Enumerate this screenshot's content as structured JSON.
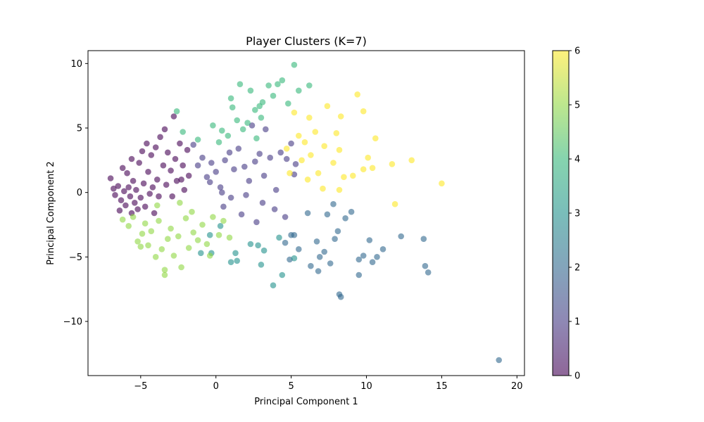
{
  "chart_data": {
    "type": "scatter",
    "title": "Player Clusters (K=7)",
    "xlabel": "Principal Component 1",
    "ylabel": "Principal Component 2",
    "xlim": [
      -8.5,
      20.5
    ],
    "ylim": [
      -14.2,
      11.0
    ],
    "xticks": [
      -5,
      0,
      5,
      10,
      15,
      20
    ],
    "yticks": [
      -10,
      -5,
      0,
      5,
      10
    ],
    "grid": false,
    "marker_alpha": 0.6,
    "colormap": "viridis",
    "colorbar": {
      "ticks": [
        0,
        1,
        2,
        3,
        4,
        5,
        6
      ],
      "range": [
        0,
        6
      ],
      "stops": [
        "#440154",
        "#443983",
        "#31688e",
        "#21918c",
        "#35b779",
        "#90d743",
        "#fde725"
      ]
    },
    "cluster_colors": [
      "#440154",
      "#443983",
      "#31688e",
      "#21918c",
      "#35b779",
      "#90d743",
      "#fde725"
    ],
    "points": [
      {
        "x": -7.0,
        "y": 1.1,
        "c": 0
      },
      {
        "x": -6.8,
        "y": 0.3,
        "c": 0
      },
      {
        "x": -6.7,
        "y": -0.2,
        "c": 0
      },
      {
        "x": -6.5,
        "y": 0.5,
        "c": 0
      },
      {
        "x": -6.3,
        "y": -0.6,
        "c": 0
      },
      {
        "x": -6.1,
        "y": 0.1,
        "c": 0
      },
      {
        "x": -6.0,
        "y": -1.0,
        "c": 0
      },
      {
        "x": -5.9,
        "y": 1.5,
        "c": 0
      },
      {
        "x": -5.8,
        "y": 0.4,
        "c": 0
      },
      {
        "x": -5.7,
        "y": -0.3,
        "c": 0
      },
      {
        "x": -5.6,
        "y": -1.6,
        "c": 0
      },
      {
        "x": -5.5,
        "y": 0.9,
        "c": 0
      },
      {
        "x": -5.4,
        "y": -0.8,
        "c": 0
      },
      {
        "x": -5.3,
        "y": 0.2,
        "c": 0
      },
      {
        "x": -5.2,
        "y": -1.3,
        "c": 0
      },
      {
        "x": -5.1,
        "y": 2.3,
        "c": 0
      },
      {
        "x": -5.0,
        "y": -0.4,
        "c": 0
      },
      {
        "x": -4.9,
        "y": 3.2,
        "c": 0
      },
      {
        "x": -4.8,
        "y": 0.7,
        "c": 0
      },
      {
        "x": -4.7,
        "y": -1.1,
        "c": 0
      },
      {
        "x": -4.6,
        "y": 3.8,
        "c": 0
      },
      {
        "x": -4.5,
        "y": 1.6,
        "c": 0
      },
      {
        "x": -4.4,
        "y": -0.1,
        "c": 0
      },
      {
        "x": -4.3,
        "y": 2.9,
        "c": 0
      },
      {
        "x": -4.2,
        "y": 0.4,
        "c": 0
      },
      {
        "x": -4.0,
        "y": 3.5,
        "c": 0
      },
      {
        "x": -3.9,
        "y": 1.0,
        "c": 0
      },
      {
        "x": -3.8,
        "y": -0.3,
        "c": 0
      },
      {
        "x": -3.7,
        "y": 4.3,
        "c": 0
      },
      {
        "x": -3.5,
        "y": 2.1,
        "c": 0
      },
      {
        "x": -3.4,
        "y": 4.9,
        "c": 0
      },
      {
        "x": -3.3,
        "y": 0.6,
        "c": 0
      },
      {
        "x": -3.2,
        "y": 3.1,
        "c": 0
      },
      {
        "x": -3.0,
        "y": 1.7,
        "c": 0
      },
      {
        "x": -2.8,
        "y": 5.9,
        "c": 0
      },
      {
        "x": -2.7,
        "y": 2.6,
        "c": 0
      },
      {
        "x": -2.6,
        "y": 0.9,
        "c": 0
      },
      {
        "x": -2.4,
        "y": 3.8,
        "c": 0
      },
      {
        "x": -2.2,
        "y": 2.1,
        "c": 0
      },
      {
        "x": -2.1,
        "y": 0.2,
        "c": 0
      },
      {
        "x": -1.9,
        "y": 3.3,
        "c": 0
      },
      {
        "x": -1.8,
        "y": 1.3,
        "c": 0
      },
      {
        "x": -6.4,
        "y": -1.4,
        "c": 0
      },
      {
        "x": -6.2,
        "y": 1.9,
        "c": 0
      },
      {
        "x": -5.6,
        "y": 2.6,
        "c": 0
      },
      {
        "x": -4.1,
        "y": -1.6,
        "c": 0
      },
      {
        "x": -2.9,
        "y": -0.3,
        "c": 0
      },
      {
        "x": -2.3,
        "y": 1.0,
        "c": 0
      },
      {
        "x": -1.5,
        "y": 3.7,
        "c": 1
      },
      {
        "x": -1.2,
        "y": 2.1,
        "c": 1
      },
      {
        "x": -0.9,
        "y": 2.7,
        "c": 1
      },
      {
        "x": -0.6,
        "y": 1.2,
        "c": 1
      },
      {
        "x": -0.3,
        "y": 2.3,
        "c": 1
      },
      {
        "x": 0.0,
        "y": 1.6,
        "c": 1
      },
      {
        "x": 0.3,
        "y": 0.4,
        "c": 1
      },
      {
        "x": 0.6,
        "y": 2.5,
        "c": 1
      },
      {
        "x": 0.9,
        "y": 3.1,
        "c": 1
      },
      {
        "x": 1.2,
        "y": 1.8,
        "c": 1
      },
      {
        "x": 1.5,
        "y": 3.4,
        "c": 1
      },
      {
        "x": 1.9,
        "y": 2.0,
        "c": 1
      },
      {
        "x": 2.2,
        "y": 0.9,
        "c": 1
      },
      {
        "x": 2.6,
        "y": 2.4,
        "c": 1
      },
      {
        "x": 2.9,
        "y": 3.0,
        "c": 1
      },
      {
        "x": 3.2,
        "y": 1.3,
        "c": 1
      },
      {
        "x": 3.6,
        "y": 2.7,
        "c": 1
      },
      {
        "x": 4.0,
        "y": 0.2,
        "c": 1
      },
      {
        "x": 4.3,
        "y": 3.1,
        "c": 1
      },
      {
        "x": 4.7,
        "y": 2.6,
        "c": 1
      },
      {
        "x": 5.0,
        "y": 3.8,
        "c": 1
      },
      {
        "x": 5.3,
        "y": 2.2,
        "c": 1
      },
      {
        "x": 0.4,
        "y": 0.0,
        "c": 1
      },
      {
        "x": 1.0,
        "y": -0.4,
        "c": 1
      },
      {
        "x": 2.0,
        "y": -0.2,
        "c": 1
      },
      {
        "x": 3.1,
        "y": -0.8,
        "c": 1
      },
      {
        "x": 3.9,
        "y": -1.3,
        "c": 1
      },
      {
        "x": 4.6,
        "y": -1.9,
        "c": 1
      },
      {
        "x": 2.7,
        "y": -2.3,
        "c": 1
      },
      {
        "x": 1.7,
        "y": -1.7,
        "c": 1
      },
      {
        "x": 0.5,
        "y": -1.1,
        "c": 1
      },
      {
        "x": -0.4,
        "y": 0.8,
        "c": 1
      },
      {
        "x": 5.2,
        "y": 1.4,
        "c": 1
      },
      {
        "x": 3.3,
        "y": 4.9,
        "c": 1
      },
      {
        "x": 2.4,
        "y": 5.2,
        "c": 1
      },
      {
        "x": 4.6,
        "y": -3.9,
        "c": 2
      },
      {
        "x": 5.2,
        "y": -3.3,
        "c": 2
      },
      {
        "x": 5.5,
        "y": -4.4,
        "c": 2
      },
      {
        "x": 6.1,
        "y": -1.6,
        "c": 2
      },
      {
        "x": 6.3,
        "y": -5.7,
        "c": 2
      },
      {
        "x": 6.7,
        "y": -3.8,
        "c": 2
      },
      {
        "x": 6.9,
        "y": -5.0,
        "c": 2
      },
      {
        "x": 7.2,
        "y": -4.6,
        "c": 2
      },
      {
        "x": 7.4,
        "y": -1.7,
        "c": 2
      },
      {
        "x": 7.6,
        "y": -5.5,
        "c": 2
      },
      {
        "x": 7.8,
        "y": -0.9,
        "c": 2
      },
      {
        "x": 7.9,
        "y": -3.6,
        "c": 2
      },
      {
        "x": 8.1,
        "y": -3.0,
        "c": 2
      },
      {
        "x": 8.2,
        "y": -7.9,
        "c": 2
      },
      {
        "x": 8.3,
        "y": -8.1,
        "c": 2
      },
      {
        "x": 8.6,
        "y": -2.0,
        "c": 2
      },
      {
        "x": 9.0,
        "y": -1.5,
        "c": 2
      },
      {
        "x": 9.5,
        "y": -5.2,
        "c": 2
      },
      {
        "x": 9.5,
        "y": -6.4,
        "c": 2
      },
      {
        "x": 9.8,
        "y": -4.9,
        "c": 2
      },
      {
        "x": 10.2,
        "y": -3.7,
        "c": 2
      },
      {
        "x": 10.4,
        "y": -5.4,
        "c": 2
      },
      {
        "x": 10.7,
        "y": -5.0,
        "c": 2
      },
      {
        "x": 11.1,
        "y": -4.4,
        "c": 2
      },
      {
        "x": 12.3,
        "y": -3.4,
        "c": 2
      },
      {
        "x": 13.8,
        "y": -3.6,
        "c": 2
      },
      {
        "x": 13.9,
        "y": -5.7,
        "c": 2
      },
      {
        "x": 14.1,
        "y": -6.2,
        "c": 2
      },
      {
        "x": 18.8,
        "y": -13.0,
        "c": 2
      },
      {
        "x": 6.8,
        "y": -6.1,
        "c": 2
      },
      {
        "x": 4.9,
        "y": -5.2,
        "c": 2
      },
      {
        "x": 5.0,
        "y": -3.3,
        "c": 2
      },
      {
        "x": 1.3,
        "y": -4.7,
        "c": 3
      },
      {
        "x": 1.4,
        "y": -5.3,
        "c": 3
      },
      {
        "x": 2.3,
        "y": -4.0,
        "c": 3
      },
      {
        "x": 3.0,
        "y": -5.6,
        "c": 3
      },
      {
        "x": 3.2,
        "y": -4.5,
        "c": 3
      },
      {
        "x": 3.8,
        "y": -7.2,
        "c": 3
      },
      {
        "x": 4.2,
        "y": -3.5,
        "c": 3
      },
      {
        "x": 4.4,
        "y": -6.4,
        "c": 3
      },
      {
        "x": 5.2,
        "y": -5.1,
        "c": 3
      },
      {
        "x": -1.0,
        "y": -4.7,
        "c": 3
      },
      {
        "x": -0.3,
        "y": -4.7,
        "c": 3
      },
      {
        "x": 0.3,
        "y": -2.6,
        "c": 3
      },
      {
        "x": 1.0,
        "y": -5.4,
        "c": 3
      },
      {
        "x": 2.8,
        "y": -4.1,
        "c": 3
      },
      {
        "x": -0.4,
        "y": -3.3,
        "c": 3
      },
      {
        "x": -2.6,
        "y": 6.3,
        "c": 4
      },
      {
        "x": -2.2,
        "y": 4.7,
        "c": 4
      },
      {
        "x": -1.2,
        "y": 4.1,
        "c": 4
      },
      {
        "x": -0.2,
        "y": 5.2,
        "c": 4
      },
      {
        "x": 0.4,
        "y": 4.8,
        "c": 4
      },
      {
        "x": 0.8,
        "y": 4.4,
        "c": 4
      },
      {
        "x": 1.0,
        "y": 7.3,
        "c": 4
      },
      {
        "x": 1.1,
        "y": 6.6,
        "c": 4
      },
      {
        "x": 1.4,
        "y": 5.6,
        "c": 4
      },
      {
        "x": 1.6,
        "y": 8.4,
        "c": 4
      },
      {
        "x": 1.8,
        "y": 4.9,
        "c": 4
      },
      {
        "x": 2.1,
        "y": 5.4,
        "c": 4
      },
      {
        "x": 2.3,
        "y": 7.9,
        "c": 4
      },
      {
        "x": 2.6,
        "y": 6.4,
        "c": 4
      },
      {
        "x": 2.9,
        "y": 6.7,
        "c": 4
      },
      {
        "x": 3.1,
        "y": 7.0,
        "c": 4
      },
      {
        "x": 3.5,
        "y": 8.3,
        "c": 4
      },
      {
        "x": 3.8,
        "y": 7.5,
        "c": 4
      },
      {
        "x": 4.1,
        "y": 8.4,
        "c": 4
      },
      {
        "x": 4.4,
        "y": 8.7,
        "c": 4
      },
      {
        "x": 4.8,
        "y": 6.9,
        "c": 4
      },
      {
        "x": 5.2,
        "y": 9.9,
        "c": 4
      },
      {
        "x": 5.5,
        "y": 7.9,
        "c": 4
      },
      {
        "x": 6.2,
        "y": 8.3,
        "c": 4
      },
      {
        "x": 0.2,
        "y": 3.9,
        "c": 4
      },
      {
        "x": 2.7,
        "y": 4.2,
        "c": 4
      },
      {
        "x": 3.0,
        "y": 5.8,
        "c": 4
      },
      {
        "x": -6.2,
        "y": -2.1,
        "c": 5
      },
      {
        "x": -5.8,
        "y": -2.6,
        "c": 5
      },
      {
        "x": -5.5,
        "y": -1.9,
        "c": 5
      },
      {
        "x": -5.2,
        "y": -3.8,
        "c": 5
      },
      {
        "x": -4.9,
        "y": -3.2,
        "c": 5
      },
      {
        "x": -4.7,
        "y": -2.4,
        "c": 5
      },
      {
        "x": -4.5,
        "y": -4.1,
        "c": 5
      },
      {
        "x": -4.3,
        "y": -3.0,
        "c": 5
      },
      {
        "x": -4.0,
        "y": -5.0,
        "c": 5
      },
      {
        "x": -3.8,
        "y": -2.2,
        "c": 5
      },
      {
        "x": -3.6,
        "y": -4.4,
        "c": 5
      },
      {
        "x": -3.4,
        "y": -6.0,
        "c": 5
      },
      {
        "x": -3.2,
        "y": -3.6,
        "c": 5
      },
      {
        "x": -3.0,
        "y": -2.8,
        "c": 5
      },
      {
        "x": -2.8,
        "y": -4.9,
        "c": 5
      },
      {
        "x": -2.5,
        "y": -3.4,
        "c": 5
      },
      {
        "x": -2.3,
        "y": -5.8,
        "c": 5
      },
      {
        "x": -2.0,
        "y": -2.0,
        "c": 5
      },
      {
        "x": -1.8,
        "y": -4.3,
        "c": 5
      },
      {
        "x": -1.5,
        "y": -3.1,
        "c": 5
      },
      {
        "x": -1.2,
        "y": -3.7,
        "c": 5
      },
      {
        "x": -0.9,
        "y": -2.5,
        "c": 5
      },
      {
        "x": -0.6,
        "y": -4.0,
        "c": 5
      },
      {
        "x": -0.2,
        "y": -1.9,
        "c": 5
      },
      {
        "x": 0.2,
        "y": -3.3,
        "c": 5
      },
      {
        "x": 0.5,
        "y": -2.2,
        "c": 5
      },
      {
        "x": 0.9,
        "y": -3.5,
        "c": 5
      },
      {
        "x": -3.4,
        "y": -6.4,
        "c": 5
      },
      {
        "x": -5.0,
        "y": -4.2,
        "c": 5
      },
      {
        "x": -2.4,
        "y": -0.8,
        "c": 5
      },
      {
        "x": -3.9,
        "y": -1.0,
        "c": 5
      },
      {
        "x": -1.6,
        "y": -1.5,
        "c": 5
      },
      {
        "x": -0.4,
        "y": -4.9,
        "c": 5
      },
      {
        "x": 4.7,
        "y": 3.4,
        "c": 6
      },
      {
        "x": 5.2,
        "y": 6.2,
        "c": 6
      },
      {
        "x": 5.5,
        "y": 4.4,
        "c": 6
      },
      {
        "x": 5.7,
        "y": 2.5,
        "c": 6
      },
      {
        "x": 5.9,
        "y": 3.9,
        "c": 6
      },
      {
        "x": 6.2,
        "y": 5.8,
        "c": 6
      },
      {
        "x": 6.3,
        "y": 2.9,
        "c": 6
      },
      {
        "x": 6.6,
        "y": 4.7,
        "c": 6
      },
      {
        "x": 6.8,
        "y": 1.5,
        "c": 6
      },
      {
        "x": 7.2,
        "y": 3.6,
        "c": 6
      },
      {
        "x": 7.4,
        "y": 6.7,
        "c": 6
      },
      {
        "x": 7.8,
        "y": 2.3,
        "c": 6
      },
      {
        "x": 8.0,
        "y": 4.6,
        "c": 6
      },
      {
        "x": 8.2,
        "y": 3.3,
        "c": 6
      },
      {
        "x": 8.3,
        "y": 5.9,
        "c": 6
      },
      {
        "x": 8.5,
        "y": 1.2,
        "c": 6
      },
      {
        "x": 9.1,
        "y": 1.3,
        "c": 6
      },
      {
        "x": 9.4,
        "y": 7.6,
        "c": 6
      },
      {
        "x": 9.8,
        "y": 6.3,
        "c": 6
      },
      {
        "x": 10.1,
        "y": 2.7,
        "c": 6
      },
      {
        "x": 10.6,
        "y": 4.2,
        "c": 6
      },
      {
        "x": 11.7,
        "y": 2.2,
        "c": 6
      },
      {
        "x": 11.9,
        "y": -0.9,
        "c": 6
      },
      {
        "x": 13.0,
        "y": 2.5,
        "c": 6
      },
      {
        "x": 15.0,
        "y": 0.7,
        "c": 6
      },
      {
        "x": 7.1,
        "y": 0.3,
        "c": 6
      },
      {
        "x": 8.2,
        "y": 0.2,
        "c": 6
      },
      {
        "x": 4.9,
        "y": 1.5,
        "c": 6
      },
      {
        "x": 6.1,
        "y": 1.0,
        "c": 6
      },
      {
        "x": 9.8,
        "y": 1.8,
        "c": 6
      },
      {
        "x": 10.4,
        "y": 1.9,
        "c": 6
      }
    ]
  }
}
